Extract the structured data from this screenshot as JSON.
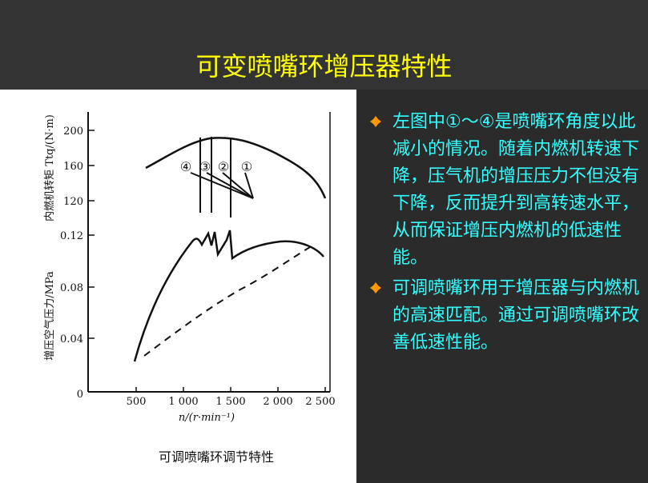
{
  "slide": {
    "title": "可变喷嘴环增压器特性",
    "bullets": [
      "左图中①～④是喷嘴环角度以此减小的情况。随着内燃机转速下降，压气机的增压压力不但没有下降，反而提升到高转速水平，从而保证增压内燃机的低速性能。",
      "可调喷嘴环用于增压器与内燃机的高速匹配。通过可调喷嘴环改善低速性能。"
    ],
    "colors": {
      "title": "#ffff00",
      "bullet_text": "#33ffff",
      "bullet_icon": "#ff9900",
      "background": "#2b2b2b"
    }
  },
  "figure": {
    "caption": "可调喷嘴环调节特性",
    "torque_axis_label": "内燃机转矩 Ttq/(N·m)",
    "pressure_axis_label": "增压空气压力/MPa",
    "x_axis_label": "n/(r·min⁻¹)",
    "x_ticks": [
      "500",
      "1 000",
      "1 500",
      "2 000",
      "2 500"
    ],
    "origin_label": "0",
    "torque_ticks": [
      "200",
      "160",
      "120"
    ],
    "pressure_ticks": [
      "0.12",
      "0.08",
      "0.04"
    ],
    "position_labels": [
      "④",
      "③",
      "②",
      "①"
    ]
  },
  "chart_data": [
    {
      "type": "line",
      "title": "",
      "xlabel": "n/(r·min⁻¹)",
      "ylabel": "内燃机转矩 Ttq/(N·m)",
      "series": [
        {
          "name": "",
          "x": [
            600,
            900,
            1100,
            1300,
            1500,
            1800,
            2100,
            2350,
            2500
          ],
          "y": [
            158,
            178,
            188,
            190,
            188,
            182,
            170,
            150,
            123
          ]
        }
      ]
    },
    {
      "type": "line",
      "title": "",
      "xlabel": "n/(r·min⁻¹)",
      "ylabel": "增压空气压力/MPa",
      "series": [
        {
          "name": "",
          "x": [
            500,
            800,
            1000,
            1100,
            1200,
            1250,
            1300,
            1350,
            1450,
            1500,
            1600,
            1800,
            2000,
            2200,
            2400,
            2500
          ],
          "y": [
            0.022,
            0.075,
            0.103,
            0.114,
            0.107,
            0.118,
            0.108,
            0.114,
            0.099,
            0.117,
            0.112,
            0.113,
            0.113,
            0.113,
            0.108,
            0.102
          ]
        },
        {
          "name": "",
          "x": [
            600,
            1000,
            1500,
            2000,
            2400
          ],
          "y": [
            0.03,
            0.052,
            0.075,
            0.095,
            0.111
          ]
        }
      ]
    }
  ]
}
